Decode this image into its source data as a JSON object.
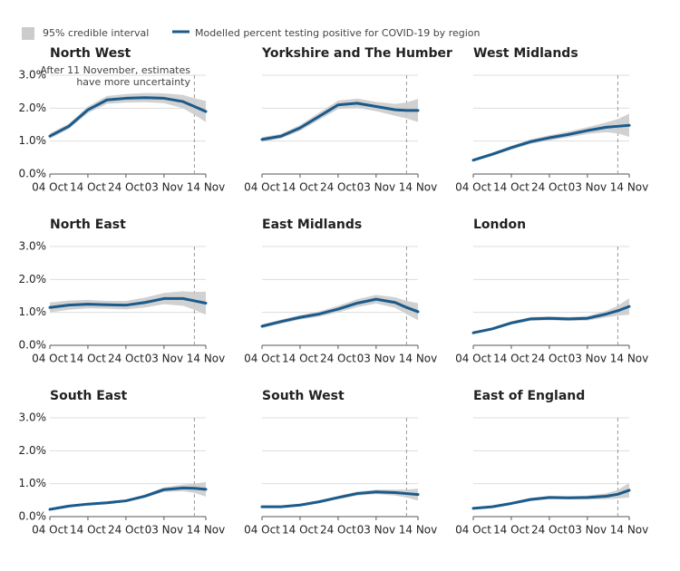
{
  "legend": [
    {
      "name": "95% credible interval",
      "color": "#cccccc"
    },
    {
      "name": "Modelled percent testing positive for COVID-19 by region",
      "color": "#1a5b8c"
    }
  ],
  "chart_data": [
    {
      "type": "line",
      "title": "North West",
      "annotation": [
        "After 11 November, estimates",
        "have more uncertainty"
      ],
      "vline": "11 Nov",
      "x": [
        "04 Oct",
        "09 Oct",
        "14 Oct",
        "19 Oct",
        "24 Oct",
        "29 Oct",
        "03 Nov",
        "08 Nov",
        "11 Nov",
        "14 Nov"
      ],
      "values": [
        1.15,
        1.45,
        1.95,
        2.25,
        2.3,
        2.32,
        2.3,
        2.2,
        2.05,
        1.9
      ],
      "error": [
        0.08,
        0.08,
        0.1,
        0.12,
        0.13,
        0.14,
        0.15,
        0.2,
        0.25,
        0.32
      ],
      "xlim": [
        "04 Oct",
        "14 Nov"
      ],
      "xticks": [
        "04 Oct",
        "14 Oct",
        "24 Oct",
        "03 Nov",
        "14 Nov"
      ],
      "ylim": [
        0,
        3
      ],
      "yticks": [
        {
          "value": 0,
          "label": "0.0%"
        },
        {
          "value": 1,
          "label": "1.0%"
        },
        {
          "value": 2,
          "label": "2.0%"
        },
        {
          "value": 3,
          "label": "3.0%"
        }
      ],
      "grid": true
    },
    {
      "type": "line",
      "title": "Yorkshire and The Humber",
      "vline": "11 Nov",
      "x": [
        "04 Oct",
        "09 Oct",
        "14 Oct",
        "19 Oct",
        "24 Oct",
        "29 Oct",
        "03 Nov",
        "08 Nov",
        "11 Nov",
        "14 Nov"
      ],
      "values": [
        1.05,
        1.15,
        1.4,
        1.75,
        2.1,
        2.15,
        2.05,
        1.95,
        1.93,
        1.93
      ],
      "error": [
        0.07,
        0.07,
        0.09,
        0.11,
        0.13,
        0.14,
        0.14,
        0.18,
        0.24,
        0.35
      ],
      "xlim": [
        "04 Oct",
        "14 Nov"
      ],
      "xticks": [
        "04 Oct",
        "14 Oct",
        "24 Oct",
        "03 Nov",
        "14 Nov"
      ],
      "ylim": [
        0,
        3
      ],
      "yticks": [
        {
          "value": 0,
          "label": "0.0%"
        },
        {
          "value": 1,
          "label": "1.0%"
        },
        {
          "value": 2,
          "label": "2.0%"
        },
        {
          "value": 3,
          "label": "3.0%"
        }
      ],
      "grid": true
    },
    {
      "type": "line",
      "title": "West Midlands",
      "vline": "11 Nov",
      "x": [
        "04 Oct",
        "09 Oct",
        "14 Oct",
        "19 Oct",
        "24 Oct",
        "29 Oct",
        "03 Nov",
        "08 Nov",
        "11 Nov",
        "14 Nov"
      ],
      "values": [
        0.42,
        0.6,
        0.8,
        0.98,
        1.1,
        1.2,
        1.32,
        1.42,
        1.45,
        1.48
      ],
      "error": [
        0.04,
        0.05,
        0.06,
        0.07,
        0.08,
        0.09,
        0.1,
        0.15,
        0.22,
        0.35
      ],
      "xlim": [
        "04 Oct",
        "14 Nov"
      ],
      "xticks": [
        "04 Oct",
        "14 Oct",
        "24 Oct",
        "03 Nov",
        "14 Nov"
      ],
      "ylim": [
        0,
        3
      ],
      "yticks": [
        {
          "value": 0,
          "label": "0.0%"
        },
        {
          "value": 1,
          "label": "1.0%"
        },
        {
          "value": 2,
          "label": "2.0%"
        },
        {
          "value": 3,
          "label": "3.0%"
        }
      ],
      "grid": true
    },
    {
      "type": "line",
      "title": "North East",
      "vline": "11 Nov",
      "x": [
        "04 Oct",
        "09 Oct",
        "14 Oct",
        "19 Oct",
        "24 Oct",
        "29 Oct",
        "03 Nov",
        "08 Nov",
        "11 Nov",
        "14 Nov"
      ],
      "values": [
        1.15,
        1.22,
        1.25,
        1.23,
        1.22,
        1.3,
        1.42,
        1.42,
        1.35,
        1.28
      ],
      "error": [
        0.15,
        0.14,
        0.13,
        0.12,
        0.13,
        0.15,
        0.17,
        0.22,
        0.27,
        0.35
      ],
      "xlim": [
        "04 Oct",
        "14 Nov"
      ],
      "xticks": [
        "04 Oct",
        "14 Oct",
        "24 Oct",
        "03 Nov",
        "14 Nov"
      ],
      "ylim": [
        0,
        3
      ],
      "yticks": [
        {
          "value": 0,
          "label": "0.0%"
        },
        {
          "value": 1,
          "label": "1.0%"
        },
        {
          "value": 2,
          "label": "2.0%"
        },
        {
          "value": 3,
          "label": "3.0%"
        }
      ],
      "grid": true
    },
    {
      "type": "line",
      "title": "East Midlands",
      "vline": "11 Nov",
      "x": [
        "04 Oct",
        "09 Oct",
        "14 Oct",
        "19 Oct",
        "24 Oct",
        "29 Oct",
        "03 Nov",
        "08 Nov",
        "11 Nov",
        "14 Nov"
      ],
      "values": [
        0.58,
        0.72,
        0.85,
        0.95,
        1.1,
        1.28,
        1.4,
        1.3,
        1.15,
        1.02
      ],
      "error": [
        0.06,
        0.06,
        0.07,
        0.08,
        0.1,
        0.12,
        0.13,
        0.16,
        0.2,
        0.26
      ],
      "xlim": [
        "04 Oct",
        "14 Nov"
      ],
      "xticks": [
        "04 Oct",
        "14 Oct",
        "24 Oct",
        "03 Nov",
        "14 Nov"
      ],
      "ylim": [
        0,
        3
      ],
      "yticks": [
        {
          "value": 0,
          "label": "0.0%"
        },
        {
          "value": 1,
          "label": "1.0%"
        },
        {
          "value": 2,
          "label": "2.0%"
        },
        {
          "value": 3,
          "label": "3.0%"
        }
      ],
      "grid": true
    },
    {
      "type": "line",
      "title": "London",
      "vline": "11 Nov",
      "x": [
        "04 Oct",
        "09 Oct",
        "14 Oct",
        "19 Oct",
        "24 Oct",
        "29 Oct",
        "03 Nov",
        "08 Nov",
        "11 Nov",
        "14 Nov"
      ],
      "values": [
        0.38,
        0.5,
        0.68,
        0.8,
        0.82,
        0.8,
        0.82,
        0.95,
        1.05,
        1.18
      ],
      "error": [
        0.04,
        0.04,
        0.05,
        0.06,
        0.06,
        0.06,
        0.07,
        0.1,
        0.15,
        0.25
      ],
      "xlim": [
        "04 Oct",
        "14 Nov"
      ],
      "xticks": [
        "04 Oct",
        "14 Oct",
        "24 Oct",
        "03 Nov",
        "14 Nov"
      ],
      "ylim": [
        0,
        3
      ],
      "yticks": [
        {
          "value": 0,
          "label": "0.0%"
        },
        {
          "value": 1,
          "label": "1.0%"
        },
        {
          "value": 2,
          "label": "2.0%"
        },
        {
          "value": 3,
          "label": "3.0%"
        }
      ],
      "grid": true
    },
    {
      "type": "line",
      "title": "South East",
      "vline": "11 Nov",
      "x": [
        "04 Oct",
        "09 Oct",
        "14 Oct",
        "19 Oct",
        "24 Oct",
        "29 Oct",
        "03 Nov",
        "08 Nov",
        "11 Nov",
        "14 Nov"
      ],
      "values": [
        0.22,
        0.32,
        0.38,
        0.42,
        0.48,
        0.62,
        0.82,
        0.87,
        0.86,
        0.83
      ],
      "error": [
        0.03,
        0.03,
        0.03,
        0.04,
        0.04,
        0.05,
        0.07,
        0.1,
        0.14,
        0.22
      ],
      "xlim": [
        "04 Oct",
        "14 Nov"
      ],
      "xticks": [
        "04 Oct",
        "14 Oct",
        "24 Oct",
        "03 Nov",
        "14 Nov"
      ],
      "ylim": [
        0,
        3
      ],
      "yticks": [
        {
          "value": 0,
          "label": "0.0%"
        },
        {
          "value": 1,
          "label": "1.0%"
        },
        {
          "value": 2,
          "label": "2.0%"
        },
        {
          "value": 3,
          "label": "3.0%"
        }
      ],
      "grid": true
    },
    {
      "type": "line",
      "title": "South West",
      "vline": "11 Nov",
      "x": [
        "04 Oct",
        "09 Oct",
        "14 Oct",
        "19 Oct",
        "24 Oct",
        "29 Oct",
        "03 Nov",
        "08 Nov",
        "11 Nov",
        "14 Nov"
      ],
      "values": [
        0.3,
        0.3,
        0.35,
        0.45,
        0.58,
        0.7,
        0.75,
        0.73,
        0.7,
        0.67
      ],
      "error": [
        0.03,
        0.03,
        0.03,
        0.04,
        0.05,
        0.06,
        0.07,
        0.09,
        0.12,
        0.18
      ],
      "xlim": [
        "04 Oct",
        "14 Nov"
      ],
      "xticks": [
        "04 Oct",
        "14 Oct",
        "24 Oct",
        "03 Nov",
        "14 Nov"
      ],
      "ylim": [
        0,
        3
      ],
      "yticks": [
        {
          "value": 0,
          "label": "0.0%"
        },
        {
          "value": 1,
          "label": "1.0%"
        },
        {
          "value": 2,
          "label": "2.0%"
        },
        {
          "value": 3,
          "label": "3.0%"
        }
      ],
      "grid": true
    },
    {
      "type": "line",
      "title": "East of England",
      "vline": "11 Nov",
      "x": [
        "04 Oct",
        "09 Oct",
        "14 Oct",
        "19 Oct",
        "24 Oct",
        "29 Oct",
        "03 Nov",
        "08 Nov",
        "11 Nov",
        "14 Nov"
      ],
      "values": [
        0.25,
        0.3,
        0.4,
        0.52,
        0.58,
        0.57,
        0.58,
        0.62,
        0.68,
        0.8
      ],
      "error": [
        0.03,
        0.03,
        0.04,
        0.05,
        0.05,
        0.05,
        0.06,
        0.09,
        0.13,
        0.22
      ],
      "xlim": [
        "04 Oct",
        "14 Nov"
      ],
      "xticks": [
        "04 Oct",
        "14 Oct",
        "24 Oct",
        "03 Nov",
        "14 Nov"
      ],
      "ylim": [
        0,
        3
      ],
      "yticks": [
        {
          "value": 0,
          "label": "0.0%"
        },
        {
          "value": 1,
          "label": "1.0%"
        },
        {
          "value": 2,
          "label": "2.0%"
        },
        {
          "value": 3,
          "label": "3.0%"
        }
      ],
      "grid": true
    }
  ]
}
